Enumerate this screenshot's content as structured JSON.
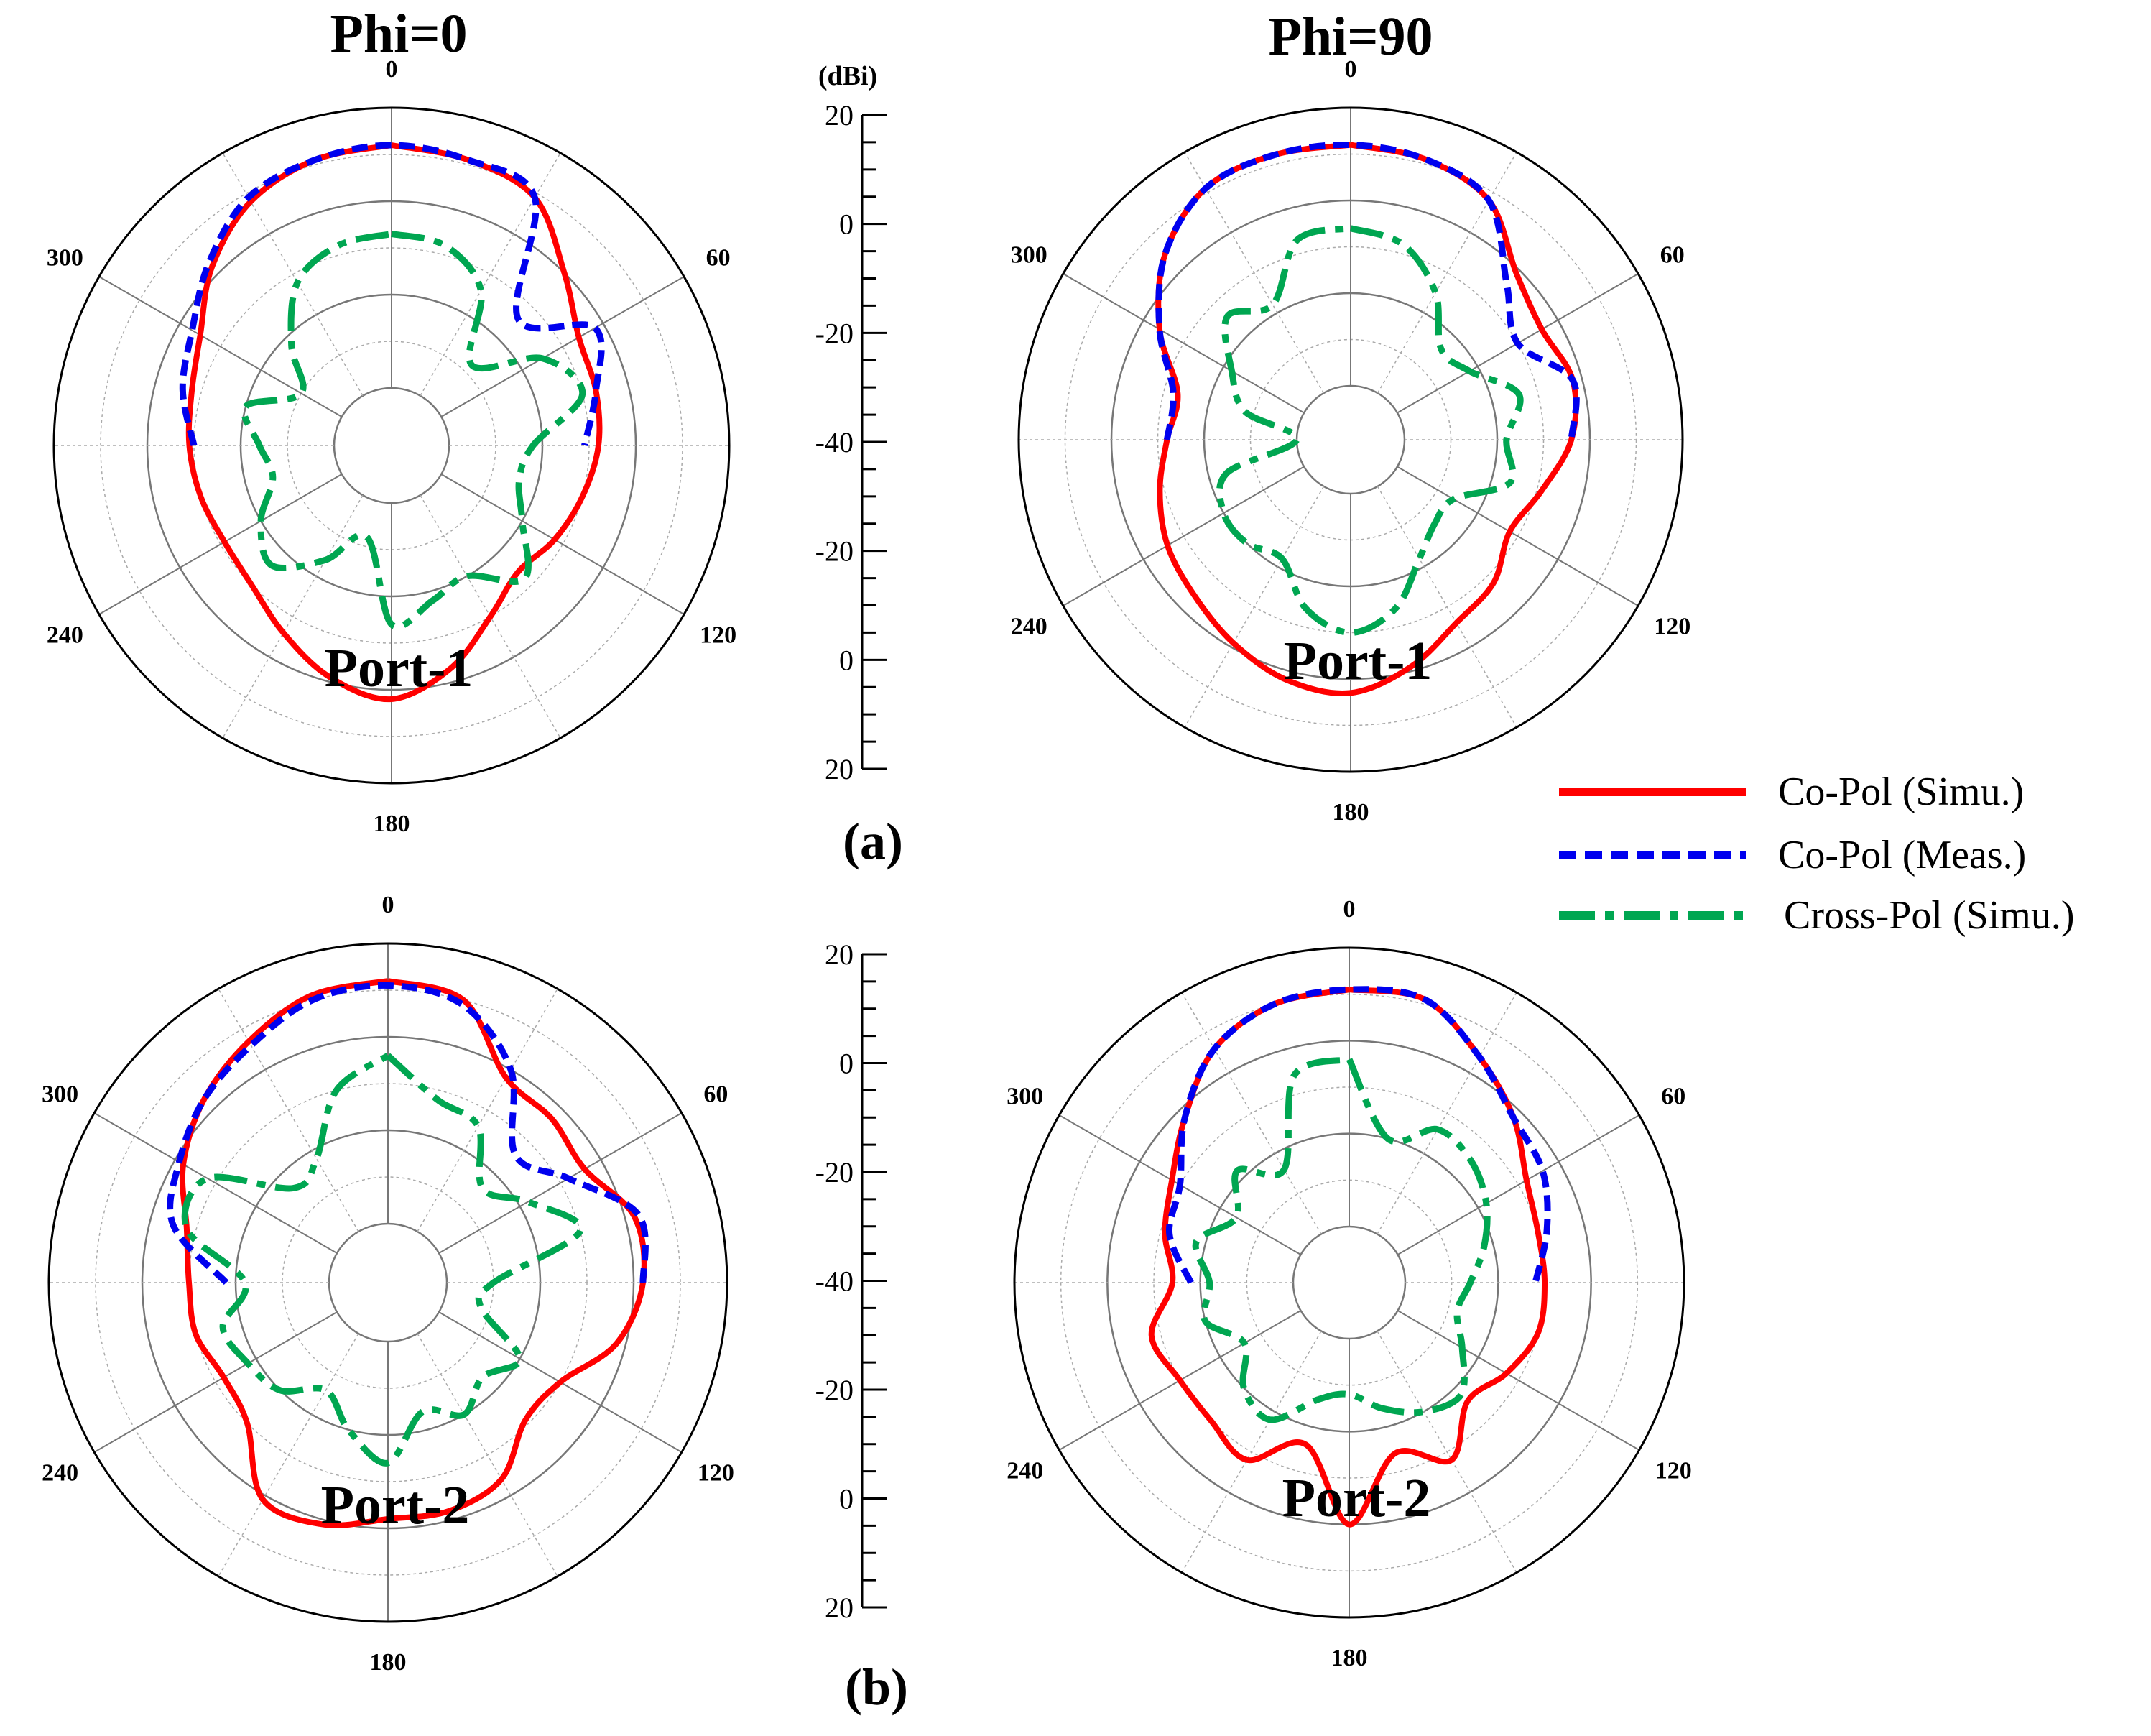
{
  "figure": {
    "column_titles": [
      "Phi=0",
      "Phi=90"
    ],
    "panel_labels": [
      "(a)",
      "(b)"
    ],
    "scale_unit": "(dBi)",
    "scale_ticks": [
      "20",
      "0",
      "-20",
      "-40",
      "-20",
      "0",
      "20"
    ],
    "angle_labels": [
      "0",
      "60",
      "120",
      "180",
      "240",
      "300"
    ],
    "legend": [
      {
        "label": "Co-Pol (Simu.)",
        "color": "#ff0000",
        "style": "solid"
      },
      {
        "label": "Co-Pol (Meas.)",
        "color": "#0000ee",
        "style": "dashed"
      },
      {
        "label": "Cross-Pol (Simu.)",
        "color": "#00a651",
        "style": "dashdot"
      }
    ]
  },
  "chart_data": [
    {
      "type": "polar-line",
      "title": "Phi=0",
      "port_label": "Port-1",
      "unit": "dBi",
      "r_range": [
        -40,
        20
      ],
      "angles_deg": [
        0,
        15,
        30,
        45,
        60,
        75,
        90,
        105,
        120,
        135,
        150,
        165,
        180,
        195,
        210,
        225,
        240,
        255,
        270,
        285,
        300,
        315,
        330,
        345
      ],
      "series": [
        {
          "name": "Co-Pol (Simu.)",
          "values": [
            12,
            11,
            9,
            0,
            -6,
            -7,
            -8,
            -10,
            -12,
            -14,
            -10,
            -3,
            2,
            -1,
            -6,
            -10,
            -11,
            -10,
            -9,
            -8,
            -5,
            2,
            8,
            11
          ]
        },
        {
          "name": "Co-Pol (Meas.)",
          "values": [
            12,
            11,
            9,
            -14,
            -2,
            -7,
            -11,
            null,
            null,
            null,
            null,
            null,
            null,
            null,
            null,
            null,
            null,
            null,
            -10,
            -6,
            -3,
            3,
            9,
            11
          ]
        },
        {
          "name": "Cross-Pol (Simu.)",
          "values": [
            -7,
            -8,
            -14,
            -28,
            -15,
            -10,
            -22,
            -24,
            -20,
            -12,
            -20,
            -18,
            -14,
            -32,
            -24,
            -16,
            -20,
            -26,
            -24,
            -20,
            -30,
            -22,
            -12,
            -8
          ]
        }
      ]
    },
    {
      "type": "polar-line",
      "title": "Phi=90",
      "port_label": "Port-1",
      "unit": "dBi",
      "r_range": [
        -40,
        20
      ],
      "angles_deg": [
        0,
        15,
        30,
        45,
        60,
        75,
        90,
        105,
        120,
        135,
        150,
        165,
        180,
        195,
        210,
        225,
        240,
        255,
        270,
        285,
        300,
        315,
        330,
        345
      ],
      "series": [
        {
          "name": "Co-Pol (Simu.)",
          "values": [
            12,
            11,
            8,
            -1,
            -4,
            -2,
            -4,
            -9,
            -12,
            -8,
            -6,
            -1,
            3,
            2,
            -1,
            -4,
            -6,
            -9,
            -12,
            -13,
            -4,
            5,
            11,
            12
          ]
        },
        {
          "name": "Co-Pol (Meas.)",
          "values": [
            12,
            11,
            8,
            -4,
            -10,
            -2,
            -4,
            null,
            null,
            null,
            null,
            null,
            null,
            null,
            null,
            null,
            null,
            null,
            -12,
            -12,
            -4,
            5,
            11,
            12
          ]
        },
        {
          "name": "Cross-Pol (Simu.)",
          "values": [
            -6,
            -8,
            -15,
            -24,
            -22,
            -14,
            -18,
            -16,
            -26,
            -26,
            -22,
            -14,
            -10,
            -14,
            -22,
            -20,
            -20,
            -24,
            -40,
            -28,
            -22,
            -14,
            -18,
            -7
          ]
        }
      ]
    },
    {
      "type": "polar-line",
      "title": "",
      "port_label": "Port-2",
      "unit": "dBi",
      "r_range": [
        -40,
        20
      ],
      "angles_deg": [
        0,
        15,
        30,
        45,
        60,
        75,
        90,
        105,
        120,
        135,
        150,
        165,
        180,
        195,
        210,
        225,
        240,
        255,
        270,
        285,
        300,
        315,
        330,
        345
      ],
      "series": [
        {
          "name": "Co-Pol (Simu.)",
          "values": [
            12,
            10,
            -2,
            -3,
            -4,
            2,
            2,
            -2,
            -10,
            -11,
            -4,
            -2,
            -2,
            1,
            1,
            -10,
            -12,
            -10,
            -10,
            -8,
            -2,
            3,
            7,
            11
          ]
        },
        {
          "name": "Co-Pol (Meas.)",
          "values": [
            11,
            9,
            0,
            -14,
            -8,
            3,
            2,
            null,
            null,
            null,
            null,
            null,
            null,
            null,
            null,
            null,
            null,
            null,
            -18,
            -5,
            -1,
            3,
            6,
            10
          ]
        },
        {
          "name": "Cross-Pol (Simu.)",
          "values": [
            -4,
            -12,
            -14,
            -24,
            -18,
            -10,
            -30,
            -32,
            -20,
            -24,
            -20,
            -24,
            -14,
            -20,
            -26,
            -20,
            -18,
            -16,
            -22,
            -8,
            -8,
            -24,
            -22,
            -10
          ]
        }
      ]
    },
    {
      "type": "polar-line",
      "title": "",
      "port_label": "Port-2",
      "unit": "dBi",
      "r_range": [
        -40,
        20
      ],
      "angles_deg": [
        0,
        15,
        30,
        45,
        60,
        75,
        90,
        105,
        120,
        135,
        150,
        165,
        180,
        195,
        210,
        225,
        240,
        255,
        270,
        285,
        300,
        315,
        330,
        345
      ],
      "series": [
        {
          "name": "Co-Pol (Simu.)",
          "values": [
            11,
            11,
            4,
            -2,
            -8,
            -10,
            -10,
            -10,
            -13,
            -16,
            -8,
            -14,
            0,
            -16,
            -8,
            -10,
            -10,
            -8,
            -14,
            -11,
            -8,
            -2,
            6,
            10
          ]
        },
        {
          "name": "Co-Pol (Meas.)",
          "values": [
            11,
            11,
            4,
            -2,
            -4,
            -8,
            -12,
            null,
            null,
            null,
            null,
            null,
            null,
            null,
            null,
            null,
            null,
            null,
            -18,
            -12,
            -10,
            -2,
            6,
            10
          ]
        },
        {
          "name": "Cross-Pol (Simu.)",
          "values": [
            -4,
            -20,
            -14,
            -15,
            -18,
            -22,
            -26,
            -28,
            -24,
            -18,
            -20,
            -24,
            -28,
            -26,
            -18,
            -20,
            -26,
            -20,
            -22,
            -18,
            -24,
            -18,
            -24,
            -6
          ]
        }
      ]
    }
  ]
}
